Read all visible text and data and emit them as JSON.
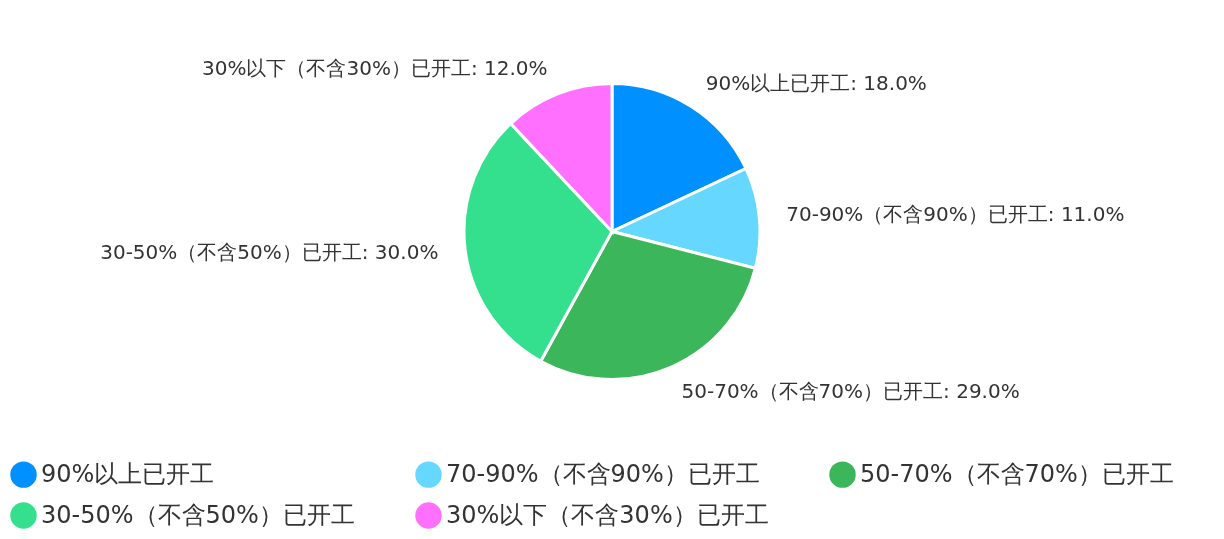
{
  "chart_data": {
    "type": "pie",
    "categories": [
      "90%以上已开工",
      "70-90%（不含90%）已开工",
      "50-70%（不含70%）已开工",
      "30-50%（不含50%）已开工",
      "30%以下（不含30%）已开工"
    ],
    "values": [
      18,
      11,
      29,
      30,
      12
    ],
    "value_labels": [
      "90%以上已开工: 18.0%",
      "70-90%（不含90%）已开工: 11.0%",
      "50-70%（不含70%）已开工: 29.0%",
      "30-50%（不含50%）已开工: 30.0%",
      "30%以下（不含30%）已开工: 12.0%"
    ],
    "colors": [
      "#0090ff",
      "#66d8ff",
      "#3cb65a",
      "#34e08e",
      "#ff70ff"
    ],
    "legend": "bottom"
  }
}
